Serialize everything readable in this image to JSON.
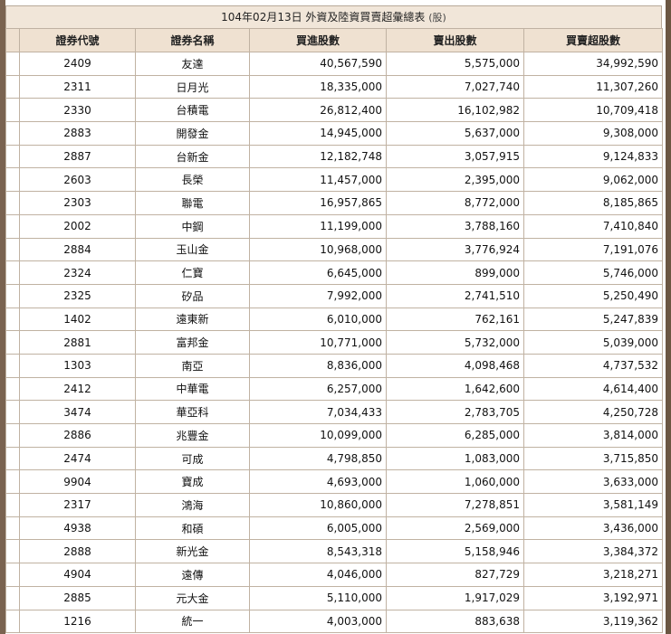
{
  "title": "104年02月13日 外資及陸資買賣超彙總表",
  "unit": "(股)",
  "columns": [
    "證券代號",
    "證券名稱",
    "買進股數",
    "賣出股數",
    "買賣超股數"
  ],
  "rows": [
    [
      "2409",
      "友達",
      "40,567,590",
      "5,575,000",
      "34,992,590"
    ],
    [
      "2311",
      "日月光",
      "18,335,000",
      "7,027,740",
      "11,307,260"
    ],
    [
      "2330",
      "台積電",
      "26,812,400",
      "16,102,982",
      "10,709,418"
    ],
    [
      "2883",
      "開發金",
      "14,945,000",
      "5,637,000",
      "9,308,000"
    ],
    [
      "2887",
      "台新金",
      "12,182,748",
      "3,057,915",
      "9,124,833"
    ],
    [
      "2603",
      "長榮",
      "11,457,000",
      "2,395,000",
      "9,062,000"
    ],
    [
      "2303",
      "聯電",
      "16,957,865",
      "8,772,000",
      "8,185,865"
    ],
    [
      "2002",
      "中鋼",
      "11,199,000",
      "3,788,160",
      "7,410,840"
    ],
    [
      "2884",
      "玉山金",
      "10,968,000",
      "3,776,924",
      "7,191,076"
    ],
    [
      "2324",
      "仁寶",
      "6,645,000",
      "899,000",
      "5,746,000"
    ],
    [
      "2325",
      "矽品",
      "7,992,000",
      "2,741,510",
      "5,250,490"
    ],
    [
      "1402",
      "遠東新",
      "6,010,000",
      "762,161",
      "5,247,839"
    ],
    [
      "2881",
      "富邦金",
      "10,771,000",
      "5,732,000",
      "5,039,000"
    ],
    [
      "1303",
      "南亞",
      "8,836,000",
      "4,098,468",
      "4,737,532"
    ],
    [
      "2412",
      "中華電",
      "6,257,000",
      "1,642,600",
      "4,614,400"
    ],
    [
      "3474",
      "華亞科",
      "7,034,433",
      "2,783,705",
      "4,250,728"
    ],
    [
      "2886",
      "兆豐金",
      "10,099,000",
      "6,285,000",
      "3,814,000"
    ],
    [
      "2474",
      "可成",
      "4,798,850",
      "1,083,000",
      "3,715,850"
    ],
    [
      "9904",
      "寶成",
      "4,693,000",
      "1,060,000",
      "3,633,000"
    ],
    [
      "2317",
      "鴻海",
      "10,860,000",
      "7,278,851",
      "3,581,149"
    ],
    [
      "4938",
      "和碩",
      "6,005,000",
      "2,569,000",
      "3,436,000"
    ],
    [
      "2888",
      "新光金",
      "8,543,318",
      "5,158,946",
      "3,384,372"
    ],
    [
      "4904",
      "遠傳",
      "4,046,000",
      "827,729",
      "3,218,271"
    ],
    [
      "2885",
      "元大金",
      "5,110,000",
      "1,917,029",
      "3,192,971"
    ],
    [
      "1216",
      "統一",
      "4,003,000",
      "883,638",
      "3,119,362"
    ]
  ]
}
